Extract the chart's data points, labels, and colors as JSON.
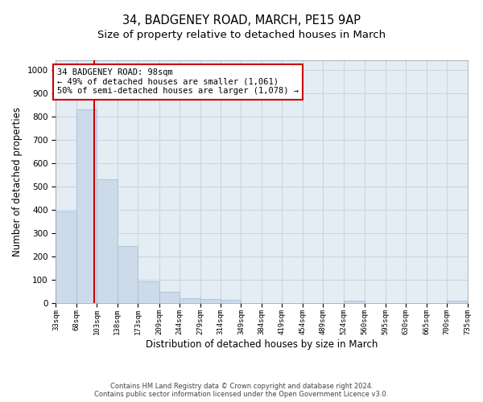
{
  "title1": "34, BADGENEY ROAD, MARCH, PE15 9AP",
  "title2": "Size of property relative to detached houses in March",
  "xlabel": "Distribution of detached houses by size in March",
  "ylabel": "Number of detached properties",
  "bar_edges": [
    33,
    68,
    103,
    138,
    173,
    209,
    244,
    279,
    314,
    349,
    384,
    419,
    454,
    489,
    524,
    560,
    595,
    630,
    665,
    700,
    735
  ],
  "bar_heights": [
    390,
    830,
    530,
    242,
    93,
    48,
    18,
    17,
    12,
    0,
    0,
    0,
    0,
    0,
    8,
    0,
    0,
    0,
    0,
    8
  ],
  "bar_color": "#ccdaea",
  "bar_edge_color": "#a8c0d8",
  "property_size": 98,
  "red_line_color": "#cc0000",
  "annotation_text": "34 BADGENEY ROAD: 98sqm\n← 49% of detached houses are smaller (1,061)\n50% of semi-detached houses are larger (1,078) →",
  "annotation_box_color": "#cc0000",
  "ylim": [
    0,
    1040
  ],
  "yticks": [
    0,
    100,
    200,
    300,
    400,
    500,
    600,
    700,
    800,
    900,
    1000
  ],
  "grid_color": "#c8d4e0",
  "background_color": "#e4ecf4",
  "footer_line1": "Contains HM Land Registry data © Crown copyright and database right 2024.",
  "footer_line2": "Contains public sector information licensed under the Open Government Licence v3.0.",
  "title1_fontsize": 10.5,
  "title2_fontsize": 9.5,
  "xlabel_fontsize": 8.5,
  "ylabel_fontsize": 8.5,
  "annotation_fontsize": 7.5,
  "tick_fontsize": 6.5,
  "ytick_fontsize": 7.5,
  "footer_fontsize": 6.0
}
